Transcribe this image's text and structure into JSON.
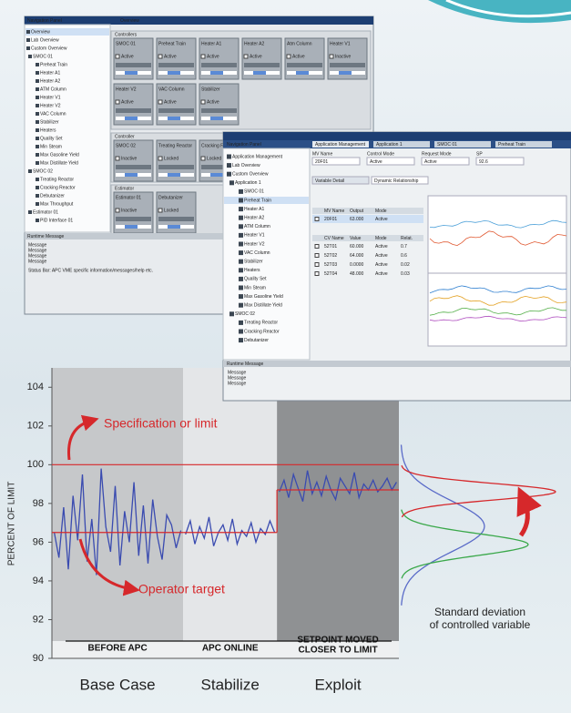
{
  "window_1": {
    "panel_title": "Navigation Panel",
    "tab": "Overview",
    "nav_items": [
      "Overview",
      "Lab Overview",
      "Custom Overview",
      "SMOC 01",
      "Preheat Train",
      "Heater A1",
      "Heater A2",
      "ATM Column",
      "Heater V1",
      "Heater V2",
      "VAC Column",
      "Stabilizer",
      "Heaters",
      "Quality Set",
      "Min Steam",
      "Max Gasoline Yield",
      "Max Distillate Yield",
      "SMOC 02",
      "Treating Reactor",
      "Cracking Reactor",
      "Debutanizer",
      "Max Throughput",
      "Estimator 01",
      "PID Interface 01"
    ],
    "sections": [
      {
        "title": "Controllers",
        "tiles": [
          {
            "name": "SMOC 01",
            "status": "Active"
          },
          {
            "name": "Preheat Train",
            "status": "Active"
          },
          {
            "name": "Heater A1",
            "status": "Active"
          },
          {
            "name": "Heater A2",
            "status": "Active"
          },
          {
            "name": "Atm Column",
            "status": "Active"
          },
          {
            "name": "Heater V1",
            "status": "Inactive"
          },
          {
            "name": "Heater V2",
            "status": "Active"
          },
          {
            "name": "VAC Column",
            "status": "Active"
          },
          {
            "name": "Stabilizer",
            "status": "Active"
          }
        ]
      },
      {
        "title": "Controller",
        "tiles": [
          {
            "name": "SMOC 02",
            "status": "Inactive"
          },
          {
            "name": "Treating Reactor",
            "status": "Locked"
          },
          {
            "name": "Cracking Reactor",
            "status": "Locked"
          }
        ]
      },
      {
        "title": "Estimator",
        "tiles": [
          {
            "name": "Estimator 01",
            "status": "Inactive"
          },
          {
            "name": "Debutanizer",
            "status": "Locked"
          }
        ]
      }
    ],
    "runtime_title": "Runtime Message",
    "messages": [
      "Message",
      "Message",
      "Message",
      "Message"
    ],
    "status_bar": "Status Bar: APC VME specific information/messages/help etc."
  },
  "window_2": {
    "panel_title": "Navigation Panel",
    "tabs": [
      "Application Management",
      "Application 1",
      "SMOC 01",
      "Preheat Train"
    ],
    "nav_items": [
      "Application Management",
      "Lab Overview",
      "Custom Overview",
      "Application 1",
      "SMOC 01",
      "Preheat Train",
      "Heater A1",
      "Heater A2",
      "ATM Column",
      "Heater V1",
      "Heater V2",
      "VAC Column",
      "Stabilizer",
      "Heaters",
      "Quality Set",
      "Min Steam",
      "Max Gasoline Yield",
      "Max Distillate Yield",
      "SMOC 02",
      "Treating Reactor",
      "Cracking Reactor",
      "Debutanizer"
    ],
    "fields": [
      [
        "MV Name",
        "20F01"
      ],
      [
        "Control Mode",
        "Active"
      ],
      [
        "Request Mode",
        "Active"
      ],
      [
        "SP",
        "92.6"
      ]
    ],
    "subtabs": [
      "Variable Detail",
      "Dynamic Relationship"
    ],
    "mv_header": [
      "MV Name",
      "Output",
      "Mode"
    ],
    "mv_rows": [
      [
        "20F01",
        "63.000",
        "Active"
      ]
    ],
    "cv_header": [
      "CV Name",
      "Value",
      "Mode",
      "Relat."
    ],
    "cv_rows": [
      [
        "52T01",
        "60.000",
        "Active",
        "0.7"
      ],
      [
        "52T02",
        "64.000",
        "Active",
        "0.6"
      ],
      [
        "52T03",
        "0.0000",
        "Active",
        "0.02"
      ],
      [
        "52T04",
        "48.000",
        "Active",
        "0.03"
      ]
    ],
    "runtime_title": "Runtime Message",
    "messages": [
      "Message",
      "Message",
      "Message"
    ]
  },
  "chart_data": {
    "type": "line",
    "y_label": "PERCENT OF LIMIT",
    "ylim": [
      90,
      105
    ],
    "yticks": [
      90,
      92,
      94,
      96,
      98,
      100,
      102,
      104
    ],
    "color": "#3a4bb0",
    "limit": {
      "label": "Specification or limit",
      "value": 100
    },
    "target_label": "Operator target",
    "phases": [
      {
        "caption": [
          "BEFORE APC"
        ],
        "label": "Base Case",
        "target": 96.5,
        "values": [
          96.5,
          95.2,
          97.8,
          94.6,
          98.4,
          96.1,
          99.5,
          95,
          97.2,
          94.3,
          99.8,
          96.8,
          95.5,
          98.9,
          94.8,
          97.6,
          96,
          99.1,
          95.3,
          97.9,
          94.9,
          98.2,
          96.3,
          95.1,
          97.4,
          96.9,
          95.7,
          96.6
        ]
      },
      {
        "caption": [
          "APC ONLINE"
        ],
        "label": "Stabilize",
        "target": 96.5,
        "values": [
          96.4,
          97.1,
          95.9,
          96.8,
          96.2,
          97.3,
          95.8,
          96.5,
          96.9,
          96.1,
          97.2,
          95.9,
          96.6,
          96.3,
          97,
          96,
          96.7,
          96.4,
          97.1,
          96.5
        ]
      },
      {
        "caption": [
          "SETPOINT MOVED",
          "CLOSER TO LIMIT"
        ],
        "label": "Exploit",
        "target": 98.7,
        "values": [
          98.6,
          99.2,
          98.3,
          99.5,
          98.8,
          98.1,
          99.7,
          98.5,
          99.1,
          98.4,
          99.4,
          98.7,
          98.2,
          99.3,
          98.9,
          98.5,
          99.6,
          98.3,
          99,
          98.7,
          99.2,
          98.6,
          98.9,
          99.3,
          98.7,
          99.1
        ]
      }
    ],
    "distribution_label": [
      "Standard deviation",
      "of controlled variable"
    ]
  }
}
